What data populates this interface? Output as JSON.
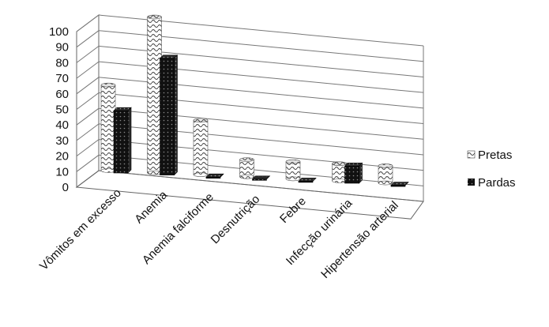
{
  "chart_data": {
    "type": "bar",
    "style": "3d-clustered-column",
    "title": "",
    "xlabel": "",
    "ylabel": "",
    "ylim": [
      0,
      100
    ],
    "y_ticks": [
      0,
      10,
      20,
      30,
      40,
      50,
      60,
      70,
      80,
      90,
      100
    ],
    "grid": true,
    "legend_position": "right",
    "categories": [
      "Vômitos em excesso",
      "Anemia",
      "Anemia falciforme",
      "Desnutrição",
      "Febre",
      "Infecção urinária",
      "Hipertensão arterial"
    ],
    "series": [
      {
        "name": "Pretas",
        "pattern": "wavy-white",
        "values": [
          55,
          100,
          35,
          11,
          11,
          11,
          11
        ]
      },
      {
        "name": "Pardas",
        "pattern": "dark-dotted",
        "values": [
          40,
          75,
          0,
          0,
          0,
          11,
          0
        ]
      }
    ]
  }
}
